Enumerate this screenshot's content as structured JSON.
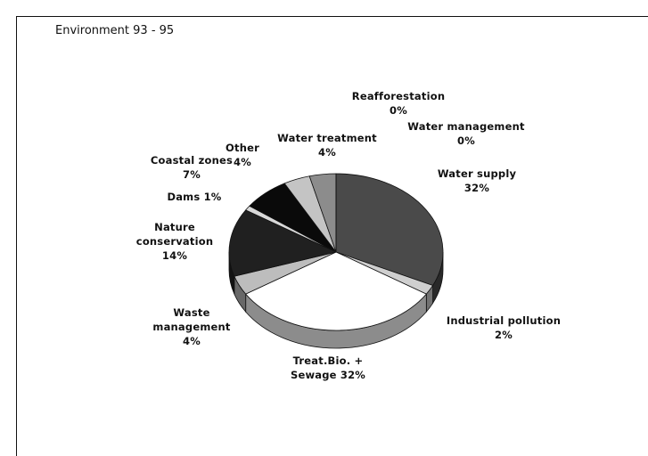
{
  "chart_data": {
    "type": "pie",
    "title": "Environment 93 - 95",
    "categories": [
      "Water supply",
      "Industrial pollution",
      "Treat.Bio. + Sewage",
      "Waste management",
      "Nature conservation",
      "Dams",
      "Coastal zones",
      "Other",
      "Water treatment",
      "Reafforestation",
      "Water management"
    ],
    "values": [
      32,
      2,
      32,
      4,
      14,
      1,
      7,
      4,
      4,
      0,
      0
    ],
    "value_labels": [
      "32%",
      "2%",
      "32%",
      "4%",
      "14%",
      "1%",
      "7%",
      "4%",
      "4%",
      "0%",
      "0%"
    ],
    "colors": [
      "#4a4a4a",
      "#cfcfcf",
      "#ffffff",
      "#bdbdbd",
      "#202020",
      "#d8d8d8",
      "#0a0a0a",
      "#c4c4c4",
      "#8c8c8c",
      "#777777",
      "#666666"
    ]
  }
}
